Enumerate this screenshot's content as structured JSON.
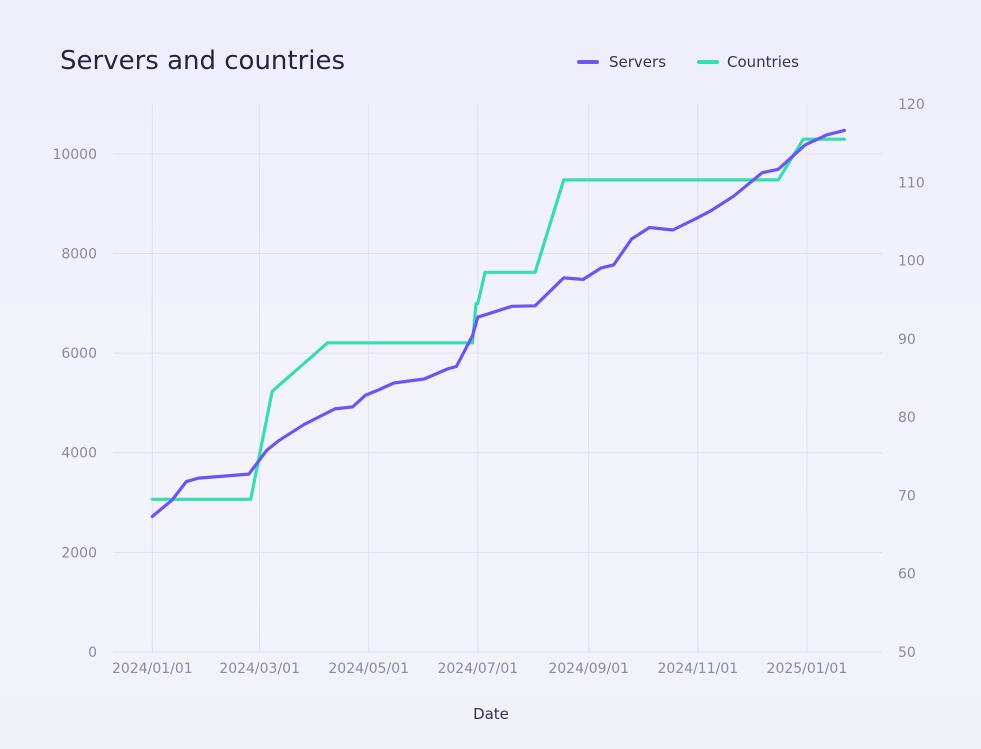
{
  "chart_data": {
    "type": "line",
    "title": "Servers and countries",
    "xlabel": "Date",
    "ylabel": "",
    "y2label": "",
    "x_ticks": [
      "2024/01/01",
      "2024/03/01",
      "2024/05/01",
      "2024/07/01",
      "2024/09/01",
      "2024/11/01",
      "2025/01/01"
    ],
    "y_ticks": [
      0,
      2000,
      4000,
      6000,
      8000,
      10000
    ],
    "y2_ticks": [
      50,
      60,
      70,
      80,
      90,
      100,
      110,
      120
    ],
    "xlim": [
      "2023-12-10",
      "2025-02-12"
    ],
    "ylim": [
      0,
      11000
    ],
    "y2lim": [
      50,
      120
    ],
    "grid": true,
    "legend": "top-right",
    "series": [
      {
        "name": "Servers",
        "axis": "left",
        "color": "#6c56f0",
        "points": [
          [
            "2024-01-01",
            2720
          ],
          [
            "2024-01-12",
            3050
          ],
          [
            "2024-01-20",
            3420
          ],
          [
            "2024-01-27",
            3490
          ],
          [
            "2024-02-24",
            3570
          ],
          [
            "2024-03-05",
            4050
          ],
          [
            "2024-03-12",
            4250
          ],
          [
            "2024-03-26",
            4570
          ],
          [
            "2024-04-12",
            4880
          ],
          [
            "2024-04-22",
            4920
          ],
          [
            "2024-04-29",
            5150
          ],
          [
            "2024-05-07",
            5270
          ],
          [
            "2024-05-15",
            5400
          ],
          [
            "2024-06-01",
            5480
          ],
          [
            "2024-06-14",
            5680
          ],
          [
            "2024-06-19",
            5730
          ],
          [
            "2024-06-28",
            6350
          ],
          [
            "2024-07-01",
            6720
          ],
          [
            "2024-07-20",
            6940
          ],
          [
            "2024-08-02",
            6950
          ],
          [
            "2024-08-18",
            7510
          ],
          [
            "2024-08-25",
            7490
          ],
          [
            "2024-08-29",
            7480
          ],
          [
            "2024-09-08",
            7710
          ],
          [
            "2024-09-15",
            7770
          ],
          [
            "2024-09-25",
            8290
          ],
          [
            "2024-10-05",
            8520
          ],
          [
            "2024-10-18",
            8470
          ],
          [
            "2024-10-31",
            8700
          ],
          [
            "2024-11-08",
            8850
          ],
          [
            "2024-11-21",
            9150
          ],
          [
            "2024-12-07",
            9620
          ],
          [
            "2024-12-16",
            9690
          ],
          [
            "2024-12-31",
            10180
          ],
          [
            "2025-01-12",
            10380
          ],
          [
            "2025-01-22",
            10470
          ]
        ]
      },
      {
        "name": "Countries",
        "axis": "right",
        "color": "#36ddb0",
        "points": [
          [
            "2024-01-01",
            69.5
          ],
          [
            "2024-02-25",
            69.5
          ],
          [
            "2024-03-08",
            83.3
          ],
          [
            "2024-04-08",
            89.5
          ],
          [
            "2024-06-28",
            89.5
          ],
          [
            "2024-06-30",
            94.5
          ],
          [
            "2024-07-01",
            94.5
          ],
          [
            "2024-07-05",
            98.5
          ],
          [
            "2024-08-02",
            98.5
          ],
          [
            "2024-08-18",
            110.3
          ],
          [
            "2024-12-16",
            110.3
          ],
          [
            "2024-12-30",
            115.5
          ],
          [
            "2025-01-22",
            115.5
          ]
        ]
      }
    ]
  }
}
